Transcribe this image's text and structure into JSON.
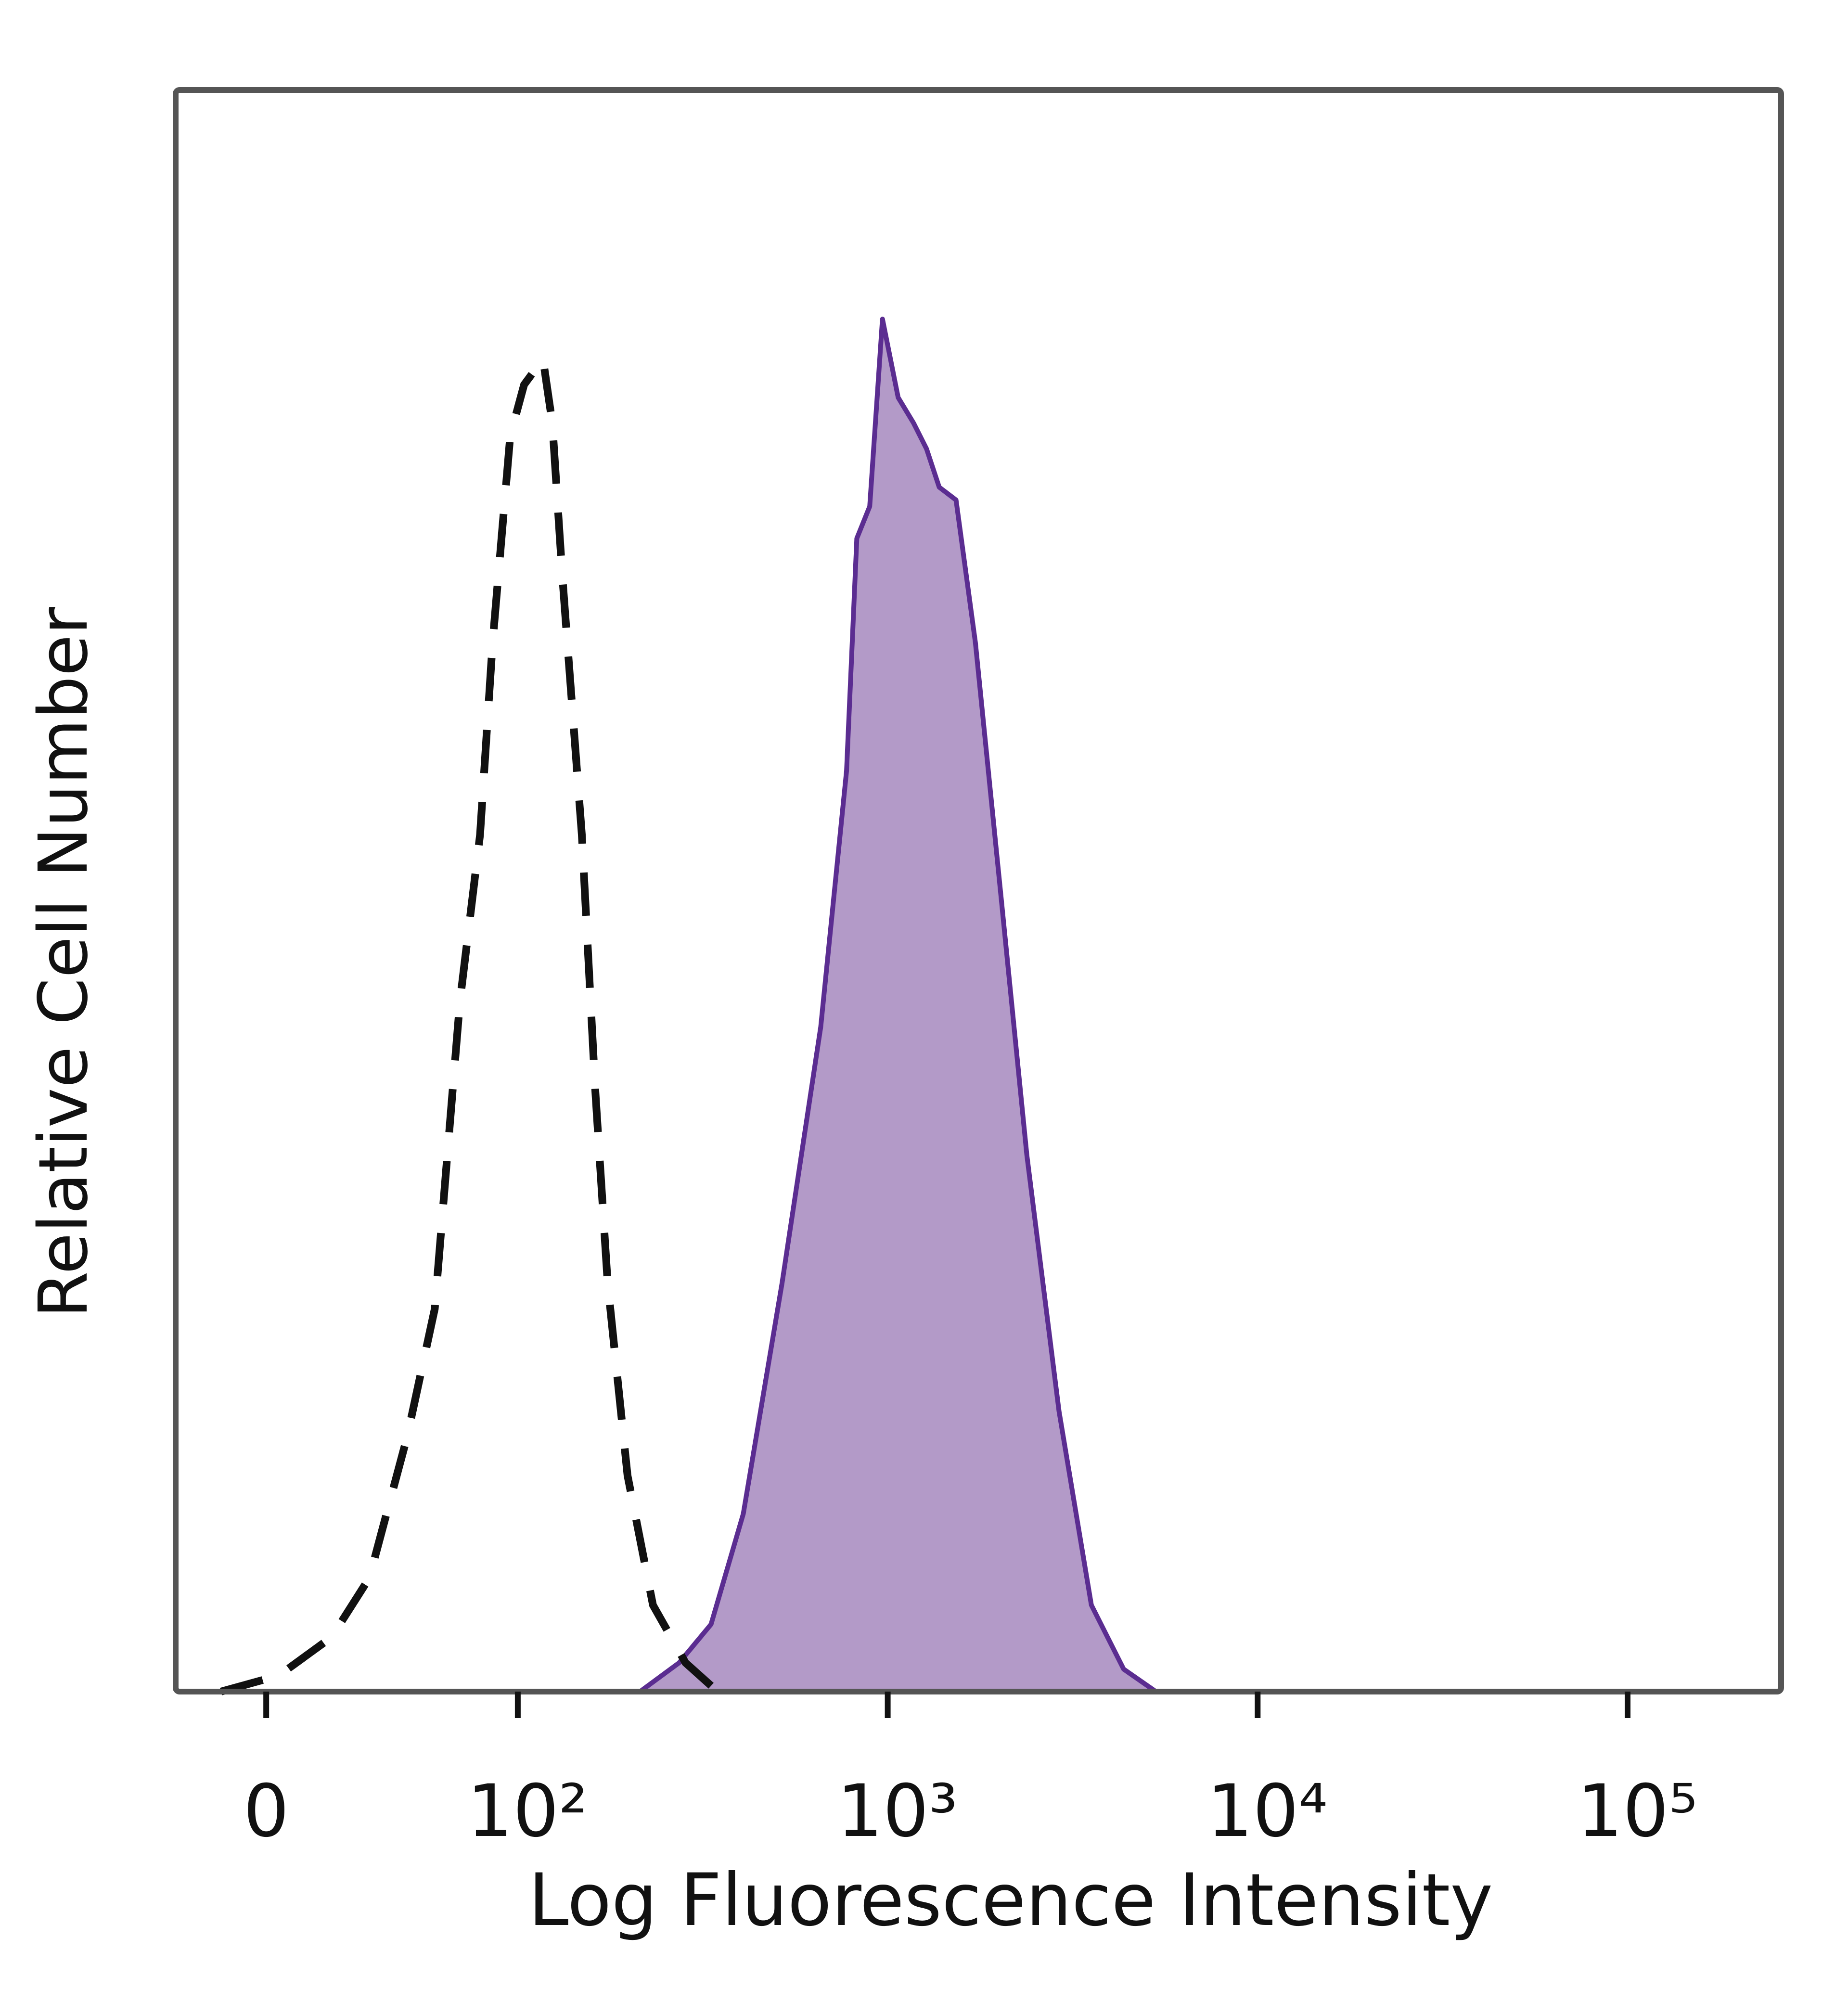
{
  "chart_data": {
    "type": "area",
    "xlabel": "Log Fluorescence Intensity",
    "ylabel": "Relative Cell Number",
    "xscale": "biexponential",
    "xlim": [
      -36,
      260000
    ],
    "ylim": [
      0,
      100
    ],
    "xticks": [
      0,
      {
        "value": 100,
        "label": "10²"
      },
      {
        "value": 1000,
        "label": "10³"
      },
      {
        "value": 10000,
        "label": "10⁴"
      },
      {
        "value": 100000,
        "label": "10⁵"
      }
    ],
    "series": [
      {
        "color": "#5b2d91",
        "fill": "#b39ac8",
        "x": [
          214,
          273,
          333,
          407,
          518,
          659,
          774,
          825,
          894,
          968,
          1067,
          1175,
          1273,
          1378,
          1530,
          1726,
          2027,
          2377,
          2905,
          3553,
          4343,
          5308
        ],
        "values": [
          0,
          1.8,
          4.2,
          11.1,
          25.5,
          41.5,
          57.5,
          72,
          74,
          85.7,
          80.8,
          79.2,
          77.6,
          75.2,
          74.4,
          65.5,
          49.5,
          33.5,
          17.5,
          5.4,
          1.4,
          0
        ]
      },
      {
        "color": "#111111",
        "dashed": true,
        "x": [
          -18,
          5,
          26,
          41,
          56,
          67,
          72,
          77,
          85,
          90,
          97,
          104,
          117,
          124,
          132,
          149,
          162,
          175,
          198,
          232,
          284,
          347
        ],
        "values": [
          0,
          1,
          3.4,
          7.1,
          15.9,
          23.9,
          33.5,
          43.1,
          53.5,
          65.5,
          78.4,
          81.6,
          83.2,
          79.2,
          69.6,
          53.5,
          37.5,
          25.5,
          13.5,
          5.4,
          1.8,
          0
        ]
      }
    ]
  }
}
